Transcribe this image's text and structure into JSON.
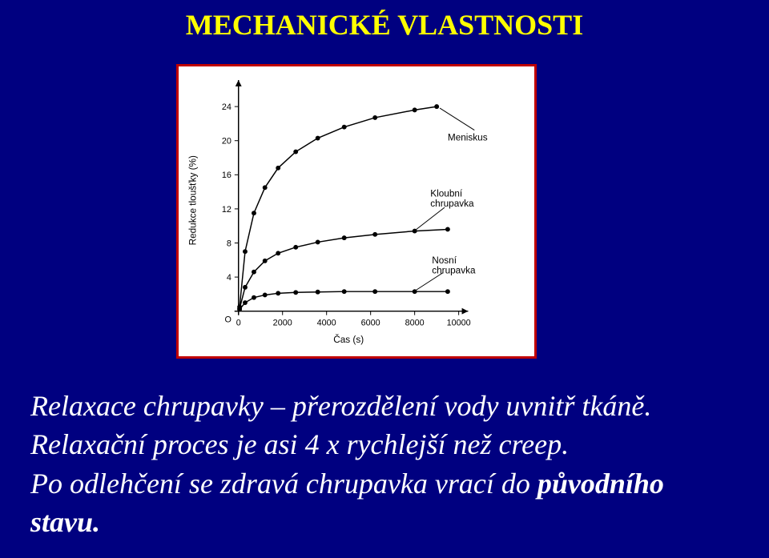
{
  "title": "MECHANICKÉ VLASTNOSTI",
  "body_line1": "Relaxace chrupavky – přerozdělení vody uvnitř tkáně.",
  "body_line2": "Relaxační proces je asi 4 x rychlejší než creep.",
  "body_line3_part1": "Po odlehčení se zdravá chrupavka vrací do ",
  "body_line3_part2_bold": "původního",
  "body_line4_bold": "stavu.",
  "chart": {
    "type": "line",
    "background_color": "#ffffff",
    "frame_border_color": "#c00000",
    "axis_color": "#000000",
    "text_color": "#000000",
    "axis_font_size_pt": 9,
    "label_font_size_pt": 10,
    "x_label": "Čas (s)",
    "y_label": "Redukce tloušťky (%)",
    "xlim": [
      0,
      10000
    ],
    "ylim": [
      0,
      26
    ],
    "x_ticks": [
      0,
      2000,
      4000,
      6000,
      8000,
      10000
    ],
    "y_ticks": [
      0,
      4,
      8,
      12,
      16,
      20,
      24
    ],
    "marker": "circle",
    "marker_size": 3,
    "line_width": 1.5,
    "series": [
      {
        "name": "Meniskus",
        "label": "Meniskus",
        "color": "#000000",
        "x": [
          50,
          300,
          700,
          1200,
          1800,
          2600,
          3600,
          4800,
          6200,
          8000,
          9000
        ],
        "y": [
          0.5,
          7.0,
          11.5,
          14.5,
          16.8,
          18.7,
          20.3,
          21.6,
          22.7,
          23.6,
          24.0
        ]
      },
      {
        "name": "Kloubní chrupavka",
        "label": "Kloubní chrupavka",
        "color": "#000000",
        "x": [
          50,
          300,
          700,
          1200,
          1800,
          2600,
          3600,
          4800,
          6200,
          8000,
          9500
        ],
        "y": [
          0.3,
          2.8,
          4.6,
          5.9,
          6.8,
          7.5,
          8.1,
          8.6,
          9.0,
          9.4,
          9.6
        ]
      },
      {
        "name": "Nosní chrupavka",
        "label": "Nosní chrupavka",
        "color": "#000000",
        "x": [
          50,
          300,
          700,
          1200,
          1800,
          2600,
          3600,
          4800,
          6200,
          8000,
          9500
        ],
        "y": [
          0.2,
          1.0,
          1.6,
          1.9,
          2.1,
          2.2,
          2.25,
          2.3,
          2.3,
          2.3,
          2.3
        ]
      }
    ]
  }
}
